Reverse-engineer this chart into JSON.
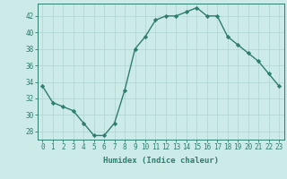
{
  "x": [
    0,
    1,
    2,
    3,
    4,
    5,
    6,
    7,
    8,
    9,
    10,
    11,
    12,
    13,
    14,
    15,
    16,
    17,
    18,
    19,
    20,
    21,
    22,
    23
  ],
  "y": [
    33.5,
    31.5,
    31.0,
    30.5,
    29.0,
    27.5,
    27.5,
    29.0,
    33.0,
    38.0,
    39.5,
    41.5,
    42.0,
    42.0,
    42.5,
    43.0,
    42.0,
    42.0,
    39.5,
    38.5,
    37.5,
    36.5,
    35.0,
    33.5
  ],
  "line_color": "#2e7d6e",
  "marker": "D",
  "markersize": 2.2,
  "linewidth": 1.0,
  "bg_color": "#cceae8",
  "grid_color": "#aed4d0",
  "xlabel": "Humidex (Indice chaleur)",
  "xlim": [
    -0.5,
    23.5
  ],
  "ylim": [
    27.0,
    43.5
  ],
  "yticks": [
    28,
    30,
    32,
    34,
    36,
    38,
    40,
    42
  ],
  "xticks": [
    0,
    1,
    2,
    3,
    4,
    5,
    6,
    7,
    8,
    9,
    10,
    11,
    12,
    13,
    14,
    15,
    16,
    17,
    18,
    19,
    20,
    21,
    22,
    23
  ],
  "tick_color": "#2e7d6e",
  "xlabel_fontsize": 6.5,
  "tick_fontsize": 5.5
}
